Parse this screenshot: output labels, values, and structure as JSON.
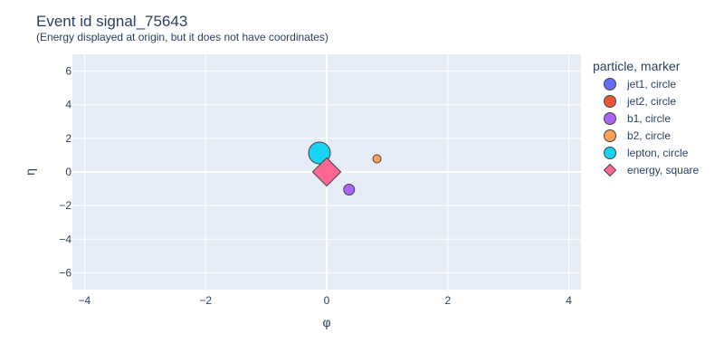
{
  "chart_data": {
    "type": "scatter",
    "title": "Event id signal_75643",
    "subtitle": "(Energy displayed at origin, but it does not have coordinates)",
    "xlabel": "φ",
    "ylabel": "η",
    "xlim": [
      -4.2,
      4.2
    ],
    "ylim": [
      -7,
      7
    ],
    "xticks": [
      -4,
      -2,
      0,
      2,
      4
    ],
    "yticks": [
      -6,
      -4,
      -2,
      0,
      2,
      4,
      6
    ],
    "xtick_labels": [
      "−4",
      "−2",
      "0",
      "2",
      "4"
    ],
    "ytick_labels": [
      "−6",
      "−4",
      "−2",
      "0",
      "2",
      "4",
      "6"
    ],
    "grid": true,
    "legend_position": "right",
    "legend_title": "particle, marker",
    "series": [
      {
        "name": "jet1, circle",
        "marker": "circle",
        "color": "#636efa",
        "points": []
      },
      {
        "name": "jet2, circle",
        "marker": "circle",
        "color": "#EF553B",
        "points": []
      },
      {
        "name": "b1, circle",
        "marker": "circle",
        "color": "#ab63fa",
        "points": [
          {
            "x": 0.37,
            "y": -1.05,
            "size": 1.0
          }
        ]
      },
      {
        "name": "b2, circle",
        "marker": "circle",
        "color": "#FFA15A",
        "points": [
          {
            "x": 0.83,
            "y": 0.78,
            "size": 0.75
          }
        ]
      },
      {
        "name": "lepton, circle",
        "marker": "circle",
        "color": "#19d3f3",
        "points": [
          {
            "x": -0.12,
            "y": 1.13,
            "size": 2.0
          }
        ]
      },
      {
        "name": "energy, square",
        "marker": "diamond",
        "color": "#FF6692",
        "points": [
          {
            "x": 0.0,
            "y": 0.0,
            "size": 2.6
          }
        ]
      }
    ]
  }
}
